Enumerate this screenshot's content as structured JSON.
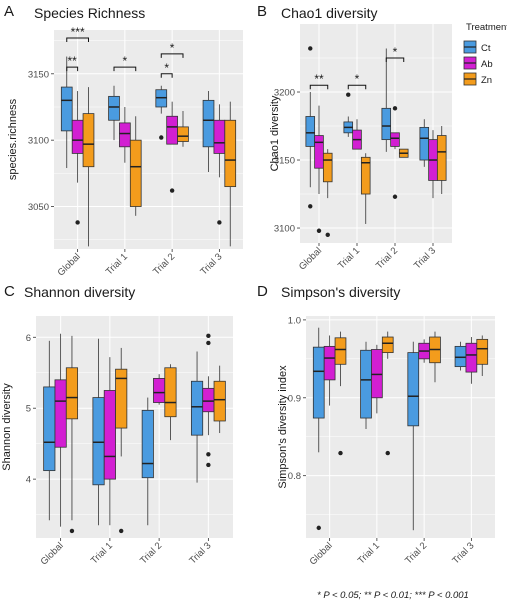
{
  "colors": {
    "Ct": "#4a9be0",
    "Ab": "#d21fd2",
    "Zn": "#f39c1c",
    "panel_bg": "#ebebeb",
    "grid": "#ffffff"
  },
  "legend": {
    "title": "Treatment",
    "items": [
      {
        "key": "Ct",
        "label": "Ct"
      },
      {
        "key": "Ab",
        "label": "Ab"
      },
      {
        "key": "Zn",
        "label": "Zn"
      }
    ]
  },
  "footnote": "* P < 0.05; ** P < 0.01; *** P < 0.001",
  "chart_data": [
    {
      "letter": "A",
      "type": "boxplot",
      "title": "Species Richness",
      "ylabel": "species.richness",
      "categories": [
        "Global",
        "Trial 1",
        "Trial 2",
        "Trial 3"
      ],
      "ylim": [
        3018,
        3183
      ],
      "yticks": [
        3050,
        3100,
        3150
      ],
      "groups": [
        {
          "category": "Global",
          "boxes": [
            {
              "treatment": "Ct",
              "min": 3079,
              "q1": 3107,
              "median": 3130,
              "q3": 3140,
              "max": 3163,
              "outliers": []
            },
            {
              "treatment": "Ab",
              "min": 3068,
              "q1": 3090,
              "median": 3100,
              "q3": 3115,
              "max": 3137,
              "outliers": [
                3038
              ]
            },
            {
              "treatment": "Zn",
              "min": 3020,
              "q1": 3080,
              "median": 3097,
              "q3": 3120,
              "max": 3140,
              "outliers": []
            }
          ]
        },
        {
          "category": "Trial 1",
          "boxes": [
            {
              "treatment": "Ct",
              "min": 3100,
              "q1": 3115,
              "median": 3125,
              "q3": 3133,
              "max": 3141,
              "outliers": []
            },
            {
              "treatment": "Ab",
              "min": 3083,
              "q1": 3095,
              "median": 3105,
              "q3": 3113,
              "max": 3125,
              "outliers": []
            },
            {
              "treatment": "Zn",
              "min": 3043,
              "q1": 3050,
              "median": 3080,
              "q3": 3100,
              "max": 3118,
              "outliers": []
            }
          ]
        },
        {
          "category": "Trial 2",
          "boxes": [
            {
              "treatment": "Ct",
              "min": 3120,
              "q1": 3125,
              "median": 3132,
              "q3": 3138,
              "max": 3141,
              "outliers": [
                3102
              ]
            },
            {
              "treatment": "Ab",
              "min": 3097,
              "q1": 3097,
              "median": 3110,
              "q3": 3118,
              "max": 3129,
              "outliers": [
                3062
              ]
            },
            {
              "treatment": "Zn",
              "min": 3095,
              "q1": 3099,
              "median": 3103,
              "q3": 3110,
              "max": 3122,
              "outliers": []
            }
          ]
        },
        {
          "category": "Trial 3",
          "boxes": [
            {
              "treatment": "Ct",
              "min": 3076,
              "q1": 3095,
              "median": 3115,
              "q3": 3130,
              "max": 3137,
              "outliers": []
            },
            {
              "treatment": "Ab",
              "min": 3072,
              "q1": 3090,
              "median": 3098,
              "q3": 3115,
              "max": 3127,
              "outliers": [
                3038
              ]
            },
            {
              "treatment": "Zn",
              "min": 3020,
              "q1": 3065,
              "median": 3085,
              "q3": 3115,
              "max": 3129,
              "outliers": []
            }
          ]
        }
      ],
      "brackets": [
        {
          "category": "Global",
          "from": 0,
          "to": 2,
          "y": 3177,
          "label": "***"
        },
        {
          "category": "Global",
          "from": 0,
          "to": 1,
          "y": 3155,
          "label": "**"
        },
        {
          "category": "Trial 1",
          "from": 0,
          "to": 2,
          "y": 3155,
          "label": "*"
        },
        {
          "category": "Trial 2",
          "from": 0,
          "to": 2,
          "y": 3165,
          "label": "*"
        },
        {
          "category": "Trial 2",
          "from": 0,
          "to": 1,
          "y": 3150,
          "label": "*"
        }
      ]
    },
    {
      "letter": "B",
      "type": "boxplot",
      "title": "Chao1 diversity",
      "ylabel": "Chao1 diversity",
      "categories": [
        "Global",
        "Trial 1",
        "Trial 2",
        "Trial 3"
      ],
      "ylim": [
        3089,
        3250
      ],
      "yticks": [
        3100,
        3150,
        3200
      ],
      "groups": [
        {
          "category": "Global",
          "boxes": [
            {
              "treatment": "Ct",
              "min": 3130,
              "q1": 3160,
              "median": 3170,
              "q3": 3182,
              "max": 3200,
              "outliers": [
                3232,
                3116
              ]
            },
            {
              "treatment": "Ab",
              "min": 3125,
              "q1": 3144,
              "median": 3163,
              "q3": 3168,
              "max": 3190,
              "outliers": [
                3098
              ]
            },
            {
              "treatment": "Zn",
              "min": 3122,
              "q1": 3134,
              "median": 3150,
              "q3": 3155,
              "max": 3158,
              "outliers": [
                3095
              ]
            }
          ]
        },
        {
          "category": "Trial 1",
          "boxes": [
            {
              "treatment": "Ct",
              "min": 3167,
              "q1": 3170,
              "median": 3174,
              "q3": 3178,
              "max": 3182,
              "outliers": [
                3198
              ]
            },
            {
              "treatment": "Ab",
              "min": 3158,
              "q1": 3158,
              "median": 3165,
              "q3": 3172,
              "max": 3180,
              "outliers": []
            },
            {
              "treatment": "Zn",
              "min": 3103,
              "q1": 3125,
              "median": 3148,
              "q3": 3152,
              "max": 3155,
              "outliers": []
            }
          ]
        },
        {
          "category": "Trial 2",
          "boxes": [
            {
              "treatment": "Ct",
              "min": 3156,
              "q1": 3165,
              "median": 3175,
              "q3": 3188,
              "max": 3232,
              "outliers": []
            },
            {
              "treatment": "Ab",
              "min": 3158,
              "q1": 3160,
              "median": 3166,
              "q3": 3170,
              "max": 3170,
              "outliers": [
                3188,
                3123
              ]
            },
            {
              "treatment": "Zn",
              "min": 3152,
              "q1": 3152,
              "median": 3155,
              "q3": 3158,
              "max": 3158,
              "outliers": []
            }
          ]
        },
        {
          "category": "Trial 3",
          "boxes": [
            {
              "treatment": "Ct",
              "min": 3145,
              "q1": 3150,
              "median": 3166,
              "q3": 3174,
              "max": 3180,
              "outliers": []
            },
            {
              "treatment": "Ab",
              "min": 3122,
              "q1": 3135,
              "median": 3150,
              "q3": 3165,
              "max": 3172,
              "outliers": []
            },
            {
              "treatment": "Zn",
              "min": 3125,
              "q1": 3135,
              "median": 3156,
              "q3": 3168,
              "max": 3175,
              "outliers": []
            }
          ]
        }
      ],
      "brackets": [
        {
          "category": "Global",
          "from": 0,
          "to": 2,
          "y": 3205,
          "label": "**"
        },
        {
          "category": "Trial 1",
          "from": 0,
          "to": 2,
          "y": 3205,
          "label": "*"
        },
        {
          "category": "Trial 2",
          "from": 0,
          "to": 2,
          "y": 3225,
          "label": "*"
        }
      ]
    },
    {
      "letter": "C",
      "type": "boxplot",
      "title": "Shannon diversity",
      "ylabel": "Shannon diversity",
      "categories": [
        "Global",
        "Trial 1",
        "Trial 2",
        "Trial 3"
      ],
      "ylim": [
        3.17,
        6.3
      ],
      "yticks": [
        4,
        5,
        6
      ],
      "groups": [
        {
          "category": "Global",
          "boxes": [
            {
              "treatment": "Ct",
              "min": 3.42,
              "q1": 4.12,
              "median": 4.52,
              "q3": 5.3,
              "max": 5.95,
              "outliers": []
            },
            {
              "treatment": "Ab",
              "min": 3.33,
              "q1": 4.45,
              "median": 5.1,
              "q3": 5.4,
              "max": 6.05,
              "outliers": []
            },
            {
              "treatment": "Zn",
              "min": 3.42,
              "q1": 4.85,
              "median": 5.15,
              "q3": 5.57,
              "max": 6.02,
              "outliers": [
                3.27
              ]
            }
          ]
        },
        {
          "category": "Trial 1",
          "boxes": [
            {
              "treatment": "Ct",
              "min": 3.35,
              "q1": 3.92,
              "median": 4.52,
              "q3": 5.15,
              "max": 5.98,
              "outliers": []
            },
            {
              "treatment": "Ab",
              "min": 3.35,
              "q1": 4.0,
              "median": 4.32,
              "q3": 5.25,
              "max": 5.72,
              "outliers": []
            },
            {
              "treatment": "Zn",
              "min": 4.32,
              "q1": 4.72,
              "median": 5.42,
              "q3": 5.55,
              "max": 5.85,
              "outliers": [
                3.27
              ]
            }
          ]
        },
        {
          "category": "Trial 2",
          "boxes": [
            {
              "treatment": "Ct",
              "min": 3.35,
              "q1": 4.02,
              "median": 4.22,
              "q3": 4.97,
              "max": 5.15,
              "outliers": []
            },
            {
              "treatment": "Ab",
              "min": 5.05,
              "q1": 5.08,
              "median": 5.22,
              "q3": 5.42,
              "max": 5.48,
              "outliers": []
            },
            {
              "treatment": "Zn",
              "min": 4.55,
              "q1": 4.88,
              "median": 5.08,
              "q3": 5.57,
              "max": 5.62,
              "outliers": []
            }
          ]
        },
        {
          "category": "Trial 3",
          "boxes": [
            {
              "treatment": "Ct",
              "min": 3.95,
              "q1": 4.62,
              "median": 5.02,
              "q3": 5.38,
              "max": 5.8,
              "outliers": []
            },
            {
              "treatment": "Ab",
              "min": 4.62,
              "q1": 4.95,
              "median": 5.1,
              "q3": 5.28,
              "max": 5.45,
              "outliers": [
                6.02,
                5.92,
                4.35,
                4.2
              ]
            },
            {
              "treatment": "Zn",
              "min": 4.65,
              "q1": 4.82,
              "median": 5.12,
              "q3": 5.38,
              "max": 5.6,
              "outliers": []
            }
          ]
        }
      ],
      "brackets": []
    },
    {
      "letter": "D",
      "type": "boxplot",
      "title": "Simpson's diversity",
      "ylabel": "Simpson's diversity index",
      "categories": [
        "Global",
        "Trial 1",
        "Trial 2",
        "Trial 3"
      ],
      "ylim": [
        0.72,
        1.005
      ],
      "yticks": [
        0.8,
        0.9,
        1.0
      ],
      "groups": [
        {
          "category": "Global",
          "boxes": [
            {
              "treatment": "Ct",
              "min": 0.83,
              "q1": 0.874,
              "median": 0.934,
              "q3": 0.965,
              "max": 0.99,
              "outliers": [
                0.733
              ]
            },
            {
              "treatment": "Ab",
              "min": 0.89,
              "q1": 0.923,
              "median": 0.951,
              "q3": 0.966,
              "max": 0.98,
              "outliers": []
            },
            {
              "treatment": "Zn",
              "min": 0.915,
              "q1": 0.943,
              "median": 0.962,
              "q3": 0.977,
              "max": 0.985,
              "outliers": [
                0.829
              ]
            }
          ]
        },
        {
          "category": "Trial 1",
          "boxes": [
            {
              "treatment": "Ct",
              "min": 0.86,
              "q1": 0.874,
              "median": 0.923,
              "q3": 0.961,
              "max": 0.972,
              "outliers": []
            },
            {
              "treatment": "Ab",
              "min": 0.88,
              "q1": 0.9,
              "median": 0.93,
              "q3": 0.962,
              "max": 0.968,
              "outliers": []
            },
            {
              "treatment": "Zn",
              "min": 0.95,
              "q1": 0.958,
              "median": 0.97,
              "q3": 0.978,
              "max": 0.985,
              "outliers": [
                0.829
              ]
            }
          ]
        },
        {
          "category": "Trial 2",
          "boxes": [
            {
              "treatment": "Ct",
              "min": 0.73,
              "q1": 0.864,
              "median": 0.902,
              "q3": 0.958,
              "max": 0.972,
              "outliers": []
            },
            {
              "treatment": "Ab",
              "min": 0.945,
              "q1": 0.95,
              "median": 0.96,
              "q3": 0.97,
              "max": 0.975,
              "outliers": []
            },
            {
              "treatment": "Zn",
              "min": 0.92,
              "q1": 0.945,
              "median": 0.962,
              "q3": 0.978,
              "max": 0.985,
              "outliers": []
            }
          ]
        },
        {
          "category": "Trial 3",
          "boxes": [
            {
              "treatment": "Ct",
              "min": 0.935,
              "q1": 0.94,
              "median": 0.952,
              "q3": 0.966,
              "max": 0.972,
              "outliers": []
            },
            {
              "treatment": "Ab",
              "min": 0.918,
              "q1": 0.933,
              "median": 0.955,
              "q3": 0.97,
              "max": 0.978,
              "outliers": []
            },
            {
              "treatment": "Zn",
              "min": 0.928,
              "q1": 0.943,
              "median": 0.963,
              "q3": 0.975,
              "max": 0.98,
              "outliers": []
            }
          ]
        }
      ],
      "brackets": []
    }
  ]
}
